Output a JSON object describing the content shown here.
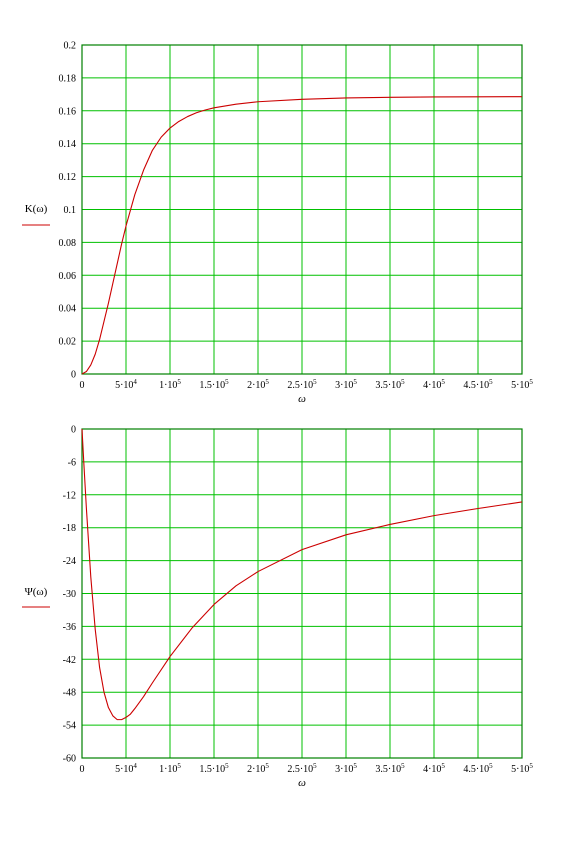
{
  "colors": {
    "grid": "#00c000",
    "frame": "#008000",
    "curve": "#cc0000",
    "text": "#000000"
  },
  "chart_data": [
    {
      "type": "line",
      "ylabel": "K(ω)",
      "xlabel": "ω",
      "xlim": [
        0,
        500000
      ],
      "ylim": [
        0,
        0.2
      ],
      "grid": true,
      "xticks": [
        {
          "v": 0,
          "m": "0",
          "e": ""
        },
        {
          "v": 50000,
          "m": "5·10",
          "e": "4"
        },
        {
          "v": 100000,
          "m": "1·10",
          "e": "5"
        },
        {
          "v": 150000,
          "m": "1.5·10",
          "e": "5"
        },
        {
          "v": 200000,
          "m": "2·10",
          "e": "5"
        },
        {
          "v": 250000,
          "m": "2.5·10",
          "e": "5"
        },
        {
          "v": 300000,
          "m": "3·10",
          "e": "5"
        },
        {
          "v": 350000,
          "m": "3.5·10",
          "e": "5"
        },
        {
          "v": 400000,
          "m": "4·10",
          "e": "5"
        },
        {
          "v": 450000,
          "m": "4.5·10",
          "e": "5"
        },
        {
          "v": 500000,
          "m": "5·10",
          "e": "5"
        }
      ],
      "yticks": [
        {
          "v": 0,
          "t": "0"
        },
        {
          "v": 0.02,
          "t": "0.02"
        },
        {
          "v": 0.04,
          "t": "0.04"
        },
        {
          "v": 0.06,
          "t": "0.06"
        },
        {
          "v": 0.08,
          "t": "0.08"
        },
        {
          "v": 0.1,
          "t": "0.1"
        },
        {
          "v": 0.12,
          "t": "0.12"
        },
        {
          "v": 0.14,
          "t": "0.14"
        },
        {
          "v": 0.16,
          "t": "0.16"
        },
        {
          "v": 0.18,
          "t": "0.18"
        },
        {
          "v": 0.2,
          "t": "0.2"
        }
      ],
      "series": [
        {
          "x": [
            0,
            5000,
            10000,
            15000,
            20000,
            25000,
            30000,
            35000,
            40000,
            45000,
            50000,
            60000,
            70000,
            80000,
            90000,
            100000,
            110000,
            120000,
            130000,
            140000,
            150000,
            175000,
            200000,
            250000,
            300000,
            350000,
            400000,
            450000,
            500000
          ],
          "y": [
            0,
            0.0015,
            0.0055,
            0.012,
            0.021,
            0.032,
            0.043,
            0.055,
            0.067,
            0.079,
            0.09,
            0.109,
            0.124,
            0.136,
            0.144,
            0.1495,
            0.1535,
            0.1565,
            0.1588,
            0.1605,
            0.1618,
            0.164,
            0.1655,
            0.167,
            0.1678,
            0.1682,
            0.1684,
            0.1685,
            0.1686
          ]
        }
      ]
    },
    {
      "type": "line",
      "ylabel": "Ψ(ω)",
      "xlabel": "ω",
      "xlim": [
        0,
        500000
      ],
      "ylim": [
        -60,
        0
      ],
      "grid": true,
      "xticks": [
        {
          "v": 0,
          "m": "0",
          "e": ""
        },
        {
          "v": 50000,
          "m": "5·10",
          "e": "4"
        },
        {
          "v": 100000,
          "m": "1·10",
          "e": "5"
        },
        {
          "v": 150000,
          "m": "1.5·10",
          "e": "5"
        },
        {
          "v": 200000,
          "m": "2·10",
          "e": "5"
        },
        {
          "v": 250000,
          "m": "2.5·10",
          "e": "5"
        },
        {
          "v": 300000,
          "m": "3·10",
          "e": "5"
        },
        {
          "v": 350000,
          "m": "3.5·10",
          "e": "5"
        },
        {
          "v": 400000,
          "m": "4·10",
          "e": "5"
        },
        {
          "v": 450000,
          "m": "4.5·10",
          "e": "5"
        },
        {
          "v": 500000,
          "m": "5·10",
          "e": "5"
        }
      ],
      "yticks": [
        {
          "v": 0,
          "t": "0"
        },
        {
          "v": -6,
          "t": "-6"
        },
        {
          "v": -12,
          "t": "-12"
        },
        {
          "v": -18,
          "t": "-18"
        },
        {
          "v": -24,
          "t": "-24"
        },
        {
          "v": -30,
          "t": "-30"
        },
        {
          "v": -36,
          "t": "-36"
        },
        {
          "v": -42,
          "t": "-42"
        },
        {
          "v": -48,
          "t": "-48"
        },
        {
          "v": -54,
          "t": "-54"
        },
        {
          "v": -60,
          "t": "-60"
        }
      ],
      "series": [
        {
          "x": [
            0,
            2000,
            5000,
            10000,
            15000,
            20000,
            25000,
            30000,
            35000,
            40000,
            45000,
            50000,
            55000,
            60000,
            70000,
            80000,
            100000,
            125000,
            150000,
            175000,
            200000,
            250000,
            300000,
            350000,
            400000,
            450000,
            500000
          ],
          "y": [
            0,
            -6,
            -14.5,
            -27,
            -36.5,
            -43.5,
            -48,
            -50.8,
            -52.3,
            -53,
            -53,
            -52.6,
            -52,
            -51,
            -48.8,
            -46.3,
            -41.5,
            -36.3,
            -32,
            -28.6,
            -26,
            -22,
            -19.3,
            -17.4,
            -15.8,
            -14.5,
            -13.3
          ]
        }
      ]
    }
  ]
}
